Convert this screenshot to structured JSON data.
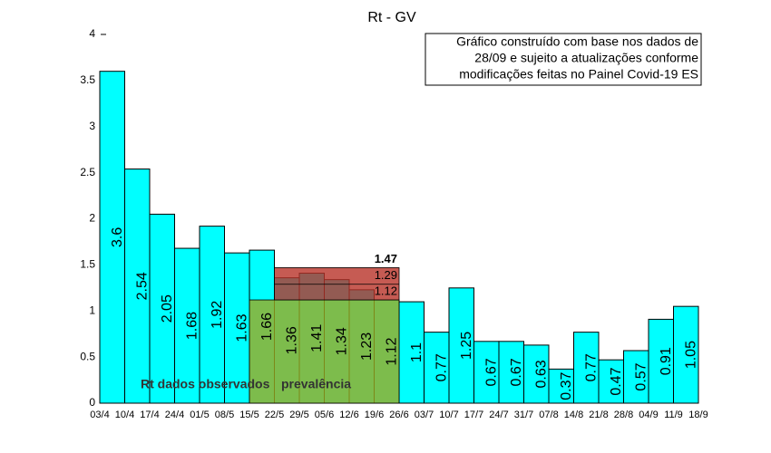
{
  "chart_data": {
    "type": "histogram",
    "title": "Rt - GV",
    "note": [
      "Gráfico construído com base nos dados de",
      "28/09 e sujeito a atualizações conforme",
      "modificações feitas no Painel Covid-19 ES"
    ],
    "bins": [
      "03/4",
      "10/4",
      "17/4",
      "24/4",
      "01/5",
      "08/5",
      "15/5",
      "22/5",
      "29/5",
      "05/6",
      "12/6",
      "19/6",
      "26/6",
      "03/7",
      "10/7",
      "17/7",
      "24/7",
      "31/7",
      "07/8",
      "14/8",
      "21/8",
      "28/8",
      "04/9",
      "11/9",
      "18/9"
    ],
    "series": [
      {
        "name": "Rt dados observados",
        "color": "#00ffff",
        "values": [
          3.6,
          2.54,
          2.05,
          1.68,
          1.92,
          1.63,
          1.66,
          1.36,
          1.41,
          1.34,
          1.23,
          1.12,
          1.1,
          0.77,
          1.25,
          0.67,
          0.67,
          0.63,
          0.37,
          0.77,
          0.47,
          0.57,
          0.91,
          1.05
        ]
      }
    ],
    "bands": [
      {
        "name": "prevalência",
        "start": "15/5",
        "end": "26/6",
        "low": 0,
        "high": 1.12,
        "color": "#9cab1f"
      },
      {
        "start": "22/5",
        "end": "26/6",
        "low": 1.12,
        "high": 1.47,
        "mid": 1.29,
        "color": "#b83228"
      }
    ],
    "ylim": [
      0,
      4
    ],
    "yticks": [
      0,
      0.5,
      1,
      1.5,
      2,
      2.5,
      3,
      3.5,
      4
    ]
  }
}
